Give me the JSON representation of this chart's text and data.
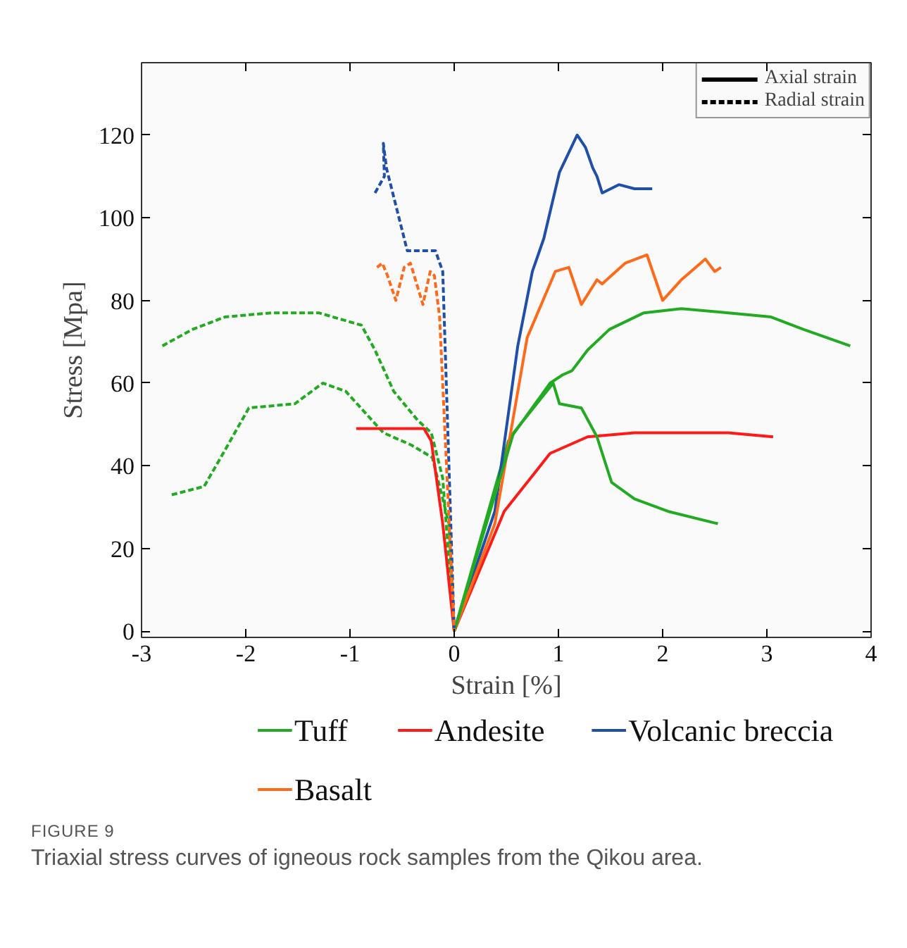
{
  "chart_data": {
    "type": "line",
    "xlabel": "Strain [%]",
    "ylabel": "Stress [Mpa]",
    "xlim": [
      -3,
      4
    ],
    "ylim": [
      -1.5,
      137.5
    ],
    "xticks": [
      -3,
      -2,
      -1,
      0,
      1,
      2,
      3,
      4
    ],
    "yticks": [
      0,
      20,
      40,
      60,
      80,
      100,
      120
    ],
    "grid": false,
    "legend": "bottom",
    "annotations": [
      "Axial strain",
      "Radial strain",
      "FIGURE 9",
      "Triaxial stress curves of igneous rock samples from the Qikou area."
    ],
    "series": [
      {
        "name": "Tuff",
        "color": "#22aa22",
        "line_style": "solid",
        "x": [
          0,
          0.52,
          0.92,
          1.04,
          1.13,
          1.28,
          1.49,
          1.82,
          2.18,
          2.63,
          3.04,
          3.35,
          3.8
        ],
        "values": [
          0,
          46,
          60,
          62,
          63,
          68,
          73,
          77,
          78,
          77,
          76,
          73,
          69
        ]
      },
      {
        "name": "Andesite",
        "color": "#ff1a1a",
        "line_style": "solid",
        "x": [
          0,
          0.48,
          0.92,
          1.28,
          1.73,
          2.63,
          3.06
        ],
        "values": [
          0,
          29,
          43,
          47,
          48,
          48,
          47
        ]
      },
      {
        "name": "Volcanic breccia",
        "color": "#1f4fa8",
        "line_style": "solid",
        "x": [
          0,
          0.39,
          0.61,
          0.75,
          0.86,
          1.01,
          1.18,
          1.26,
          1.33,
          1.37,
          1.42,
          1.58,
          1.73,
          1.9
        ],
        "values": [
          0,
          29,
          69,
          87,
          95,
          111,
          120,
          117,
          112,
          110,
          106,
          108,
          107,
          107
        ]
      },
      {
        "name": "Basalt",
        "color": "#ff6a1a",
        "line_style": "solid",
        "x": [
          0,
          0.39,
          0.7,
          0.97,
          1.1,
          1.22,
          1.37,
          1.42,
          1.64,
          1.85,
          2.0,
          2.18,
          2.41,
          2.5,
          2.56
        ],
        "values": [
          0,
          26,
          71,
          87,
          88,
          79,
          85,
          84,
          89,
          91,
          80,
          85,
          90,
          87,
          88
        ]
      },
      {
        "color": "#22aa22",
        "line_style": "solid",
        "x": [
          0,
          0.57,
          0.95,
          1.01,
          1.22,
          1.37,
          1.51,
          1.73,
          2.05,
          2.53
        ],
        "values": [
          0,
          48,
          60,
          55,
          54,
          47,
          36,
          32,
          29,
          26
        ]
      },
      {
        "color": "#22aa22",
        "line_style": "dashed",
        "x": [
          -2.8,
          -2.51,
          -2.2,
          -1.75,
          -1.3,
          -0.89,
          -0.76,
          -0.58,
          -0.35,
          -0.22,
          -0.11,
          0
        ],
        "values": [
          69,
          73,
          76,
          77,
          77,
          74,
          68,
          58,
          51,
          48,
          37,
          0
        ]
      },
      {
        "color": "#22aa22",
        "line_style": "dashed",
        "x": [
          -2.71,
          -2.4,
          -2.24,
          -1.97,
          -1.53,
          -1.26,
          -1.04,
          -0.68,
          -0.41,
          -0.21,
          -0.05,
          0
        ],
        "values": [
          33,
          35,
          42,
          54,
          55,
          60,
          58,
          48,
          45,
          42,
          26,
          0
        ]
      },
      {
        "color": "#ff1a1a",
        "line_style": "solid",
        "x": [
          -0.94,
          -0.58,
          -0.29,
          -0.22,
          -0.11,
          0
        ],
        "values": [
          49,
          49,
          49,
          46,
          26,
          0
        ]
      },
      {
        "color": "#1f4fa8",
        "line_style": "dashed",
        "x": [
          -0.76,
          -0.67,
          -0.68,
          -0.65,
          -0.45,
          -0.18,
          -0.11,
          0
        ],
        "values": [
          106,
          110,
          118,
          112,
          92,
          92,
          87,
          0
        ]
      },
      {
        "color": "#ff6a1a",
        "line_style": "dashed",
        "x": [
          -0.74,
          -0.69,
          -0.64,
          -0.56,
          -0.48,
          -0.42,
          -0.3,
          -0.23,
          -0.19,
          -0.14,
          0
        ],
        "values": [
          88,
          89,
          86,
          80,
          88,
          89,
          79,
          87,
          86,
          76,
          0
        ]
      }
    ]
  }
}
